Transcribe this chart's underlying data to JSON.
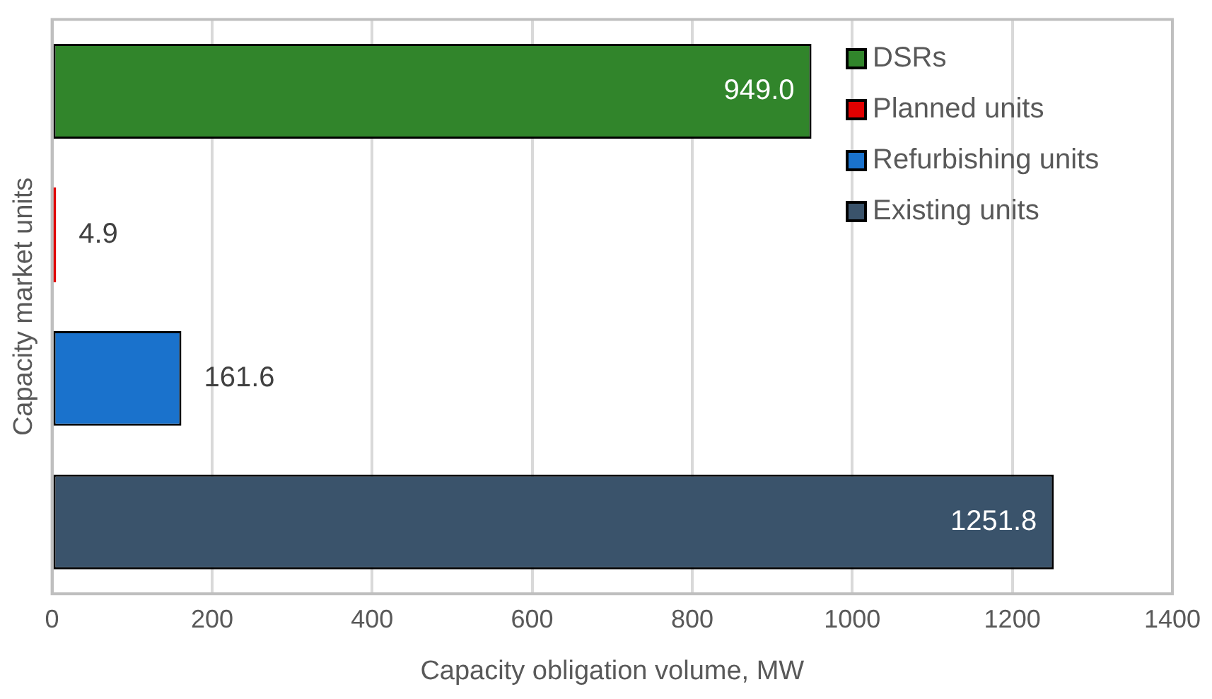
{
  "chart_data": {
    "type": "bar",
    "orientation": "horizontal",
    "xlabel": "Capacity obligation volume, MW",
    "ylabel": "Capacity market units",
    "categories": [
      null,
      null,
      null,
      null
    ],
    "series": [
      {
        "name": "DSRs",
        "color": "#31852b",
        "values": [
          949.0,
          null,
          null,
          null
        ],
        "value_labels": [
          "949.0",
          null,
          null,
          null
        ]
      },
      {
        "name": "Planned units",
        "color": "#e00000",
        "values": [
          null,
          4.9,
          null,
          null
        ],
        "value_labels": [
          null,
          "4.9",
          null,
          null
        ]
      },
      {
        "name": "Refurbishing units",
        "color": "#1a72cc",
        "values": [
          null,
          null,
          161.6,
          null
        ],
        "value_labels": [
          null,
          null,
          "161.6",
          null
        ]
      },
      {
        "name": "Existing units",
        "color": "#3a536b",
        "values": [
          null,
          null,
          null,
          1251.8
        ],
        "value_labels": [
          null,
          null,
          null,
          "1251.8"
        ]
      }
    ],
    "xlim": [
      0,
      1400
    ],
    "xticks": [
      0,
      200,
      400,
      600,
      800,
      1000,
      1200,
      1400
    ],
    "grid": "x",
    "legend": "top right"
  }
}
